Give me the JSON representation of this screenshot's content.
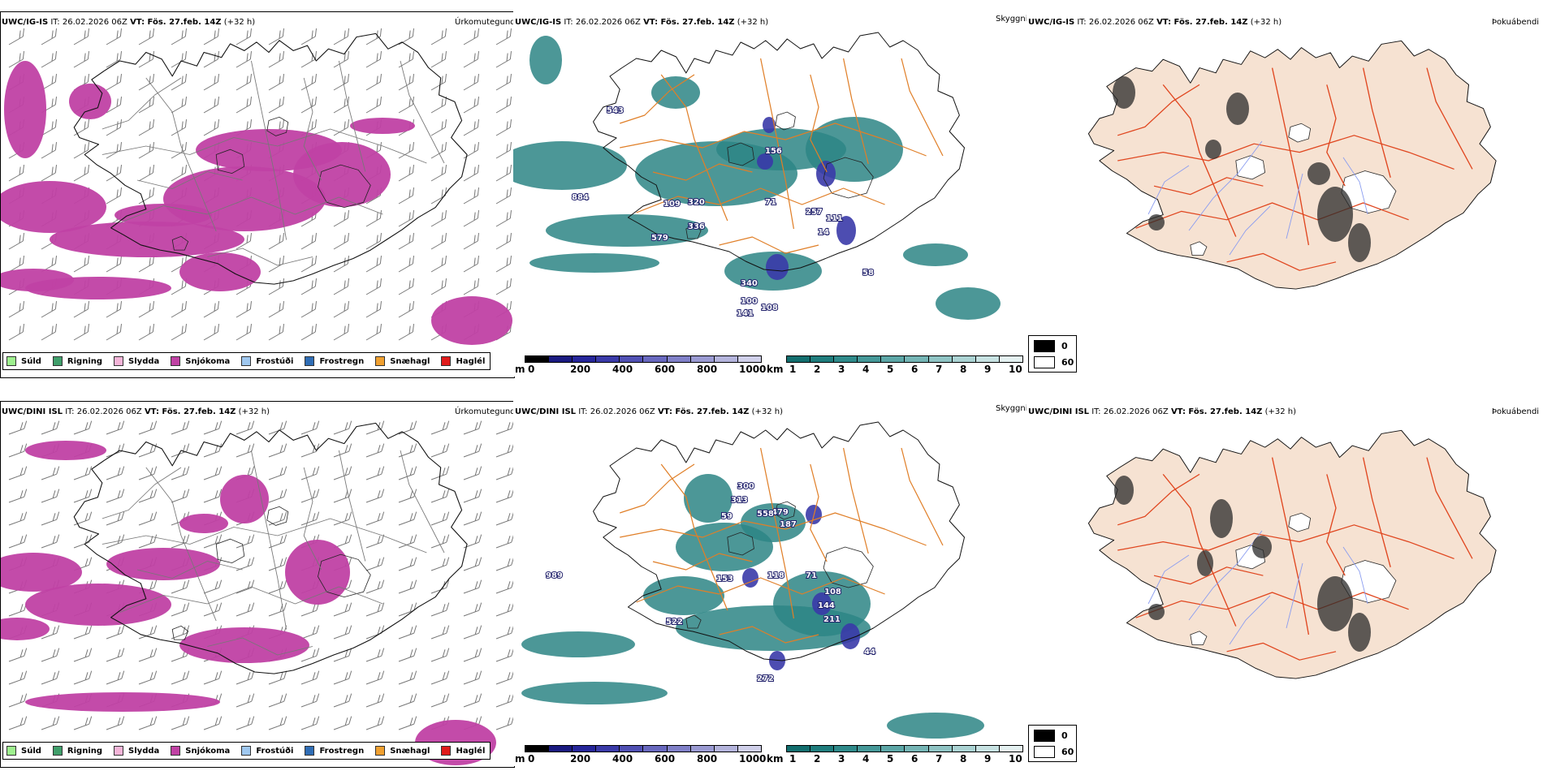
{
  "rows": [
    {
      "model": "UWC/IG-IS",
      "it_label": "IT: 26.02.2026 06Z",
      "vt_label": "VT: Fös. 27.feb. 14Z",
      "lead": "(+32 h)",
      "panels": {
        "precip": "Úrkomutegund",
        "cloud": "Skyggni",
        "fog": "Þokuábendi"
      },
      "sky_numbers": [
        "543",
        "156",
        "884",
        "109",
        "320",
        "71",
        "257",
        "111",
        "579",
        "336",
        "14",
        "58",
        "340",
        "108",
        "100",
        "141"
      ]
    },
    {
      "model": "UWC/DINI ISL",
      "it_label": "IT: 26.02.2026 06Z",
      "vt_label": "VT: Fös. 27.feb. 14Z",
      "lead": "(+32 h)",
      "panels": {
        "precip": "Úrkomutegund",
        "cloud": "Skyggni",
        "fog": "Þokuábendi"
      },
      "sky_numbers": [
        "300",
        "313",
        "479",
        "59",
        "558",
        "187",
        "989",
        "153",
        "118",
        "71",
        "108",
        "144",
        "522",
        "211",
        "44",
        "272"
      ]
    }
  ],
  "precip_legend": [
    {
      "label": "Súld",
      "color": "#9ef08e"
    },
    {
      "label": "Rigning",
      "color": "#3f9e6a"
    },
    {
      "label": "Slydda",
      "color": "#f4b4d8"
    },
    {
      "label": "Snjókoma",
      "color": "#c041a4"
    },
    {
      "label": "Frostúði",
      "color": "#9fc8f0"
    },
    {
      "label": "Frostregn",
      "color": "#2f6db5"
    },
    {
      "label": "Snæhagl",
      "color": "#f0a030"
    },
    {
      "label": "Haglél",
      "color": "#e01b1b"
    }
  ],
  "cloudbase_bar": {
    "unit": "m",
    "ticks": [
      "0",
      "200",
      "400",
      "600",
      "800",
      "1000"
    ],
    "colors": [
      "#000000",
      "#1a1a80",
      "#26269a",
      "#3a3aa8",
      "#5050b3",
      "#6868be",
      "#8080c8",
      "#9a9ad2",
      "#b4b4dc",
      "#d0d0ea"
    ]
  },
  "visibility_bar": {
    "unit": "km",
    "ticks": [
      "1",
      "2",
      "3",
      "4",
      "5",
      "6",
      "7",
      "8",
      "9",
      "10"
    ],
    "colors": [
      "#126e6e",
      "#1f7d7d",
      "#2f8a8a",
      "#459898",
      "#5ca6a6",
      "#75b5b5",
      "#8fc4c4",
      "#abd3d3",
      "#c7e2e2",
      "#e4f1f1"
    ]
  },
  "fog_legend": [
    {
      "value": "0",
      "color": "#000000"
    },
    {
      "value": "60",
      "color": "#ffffff"
    }
  ]
}
